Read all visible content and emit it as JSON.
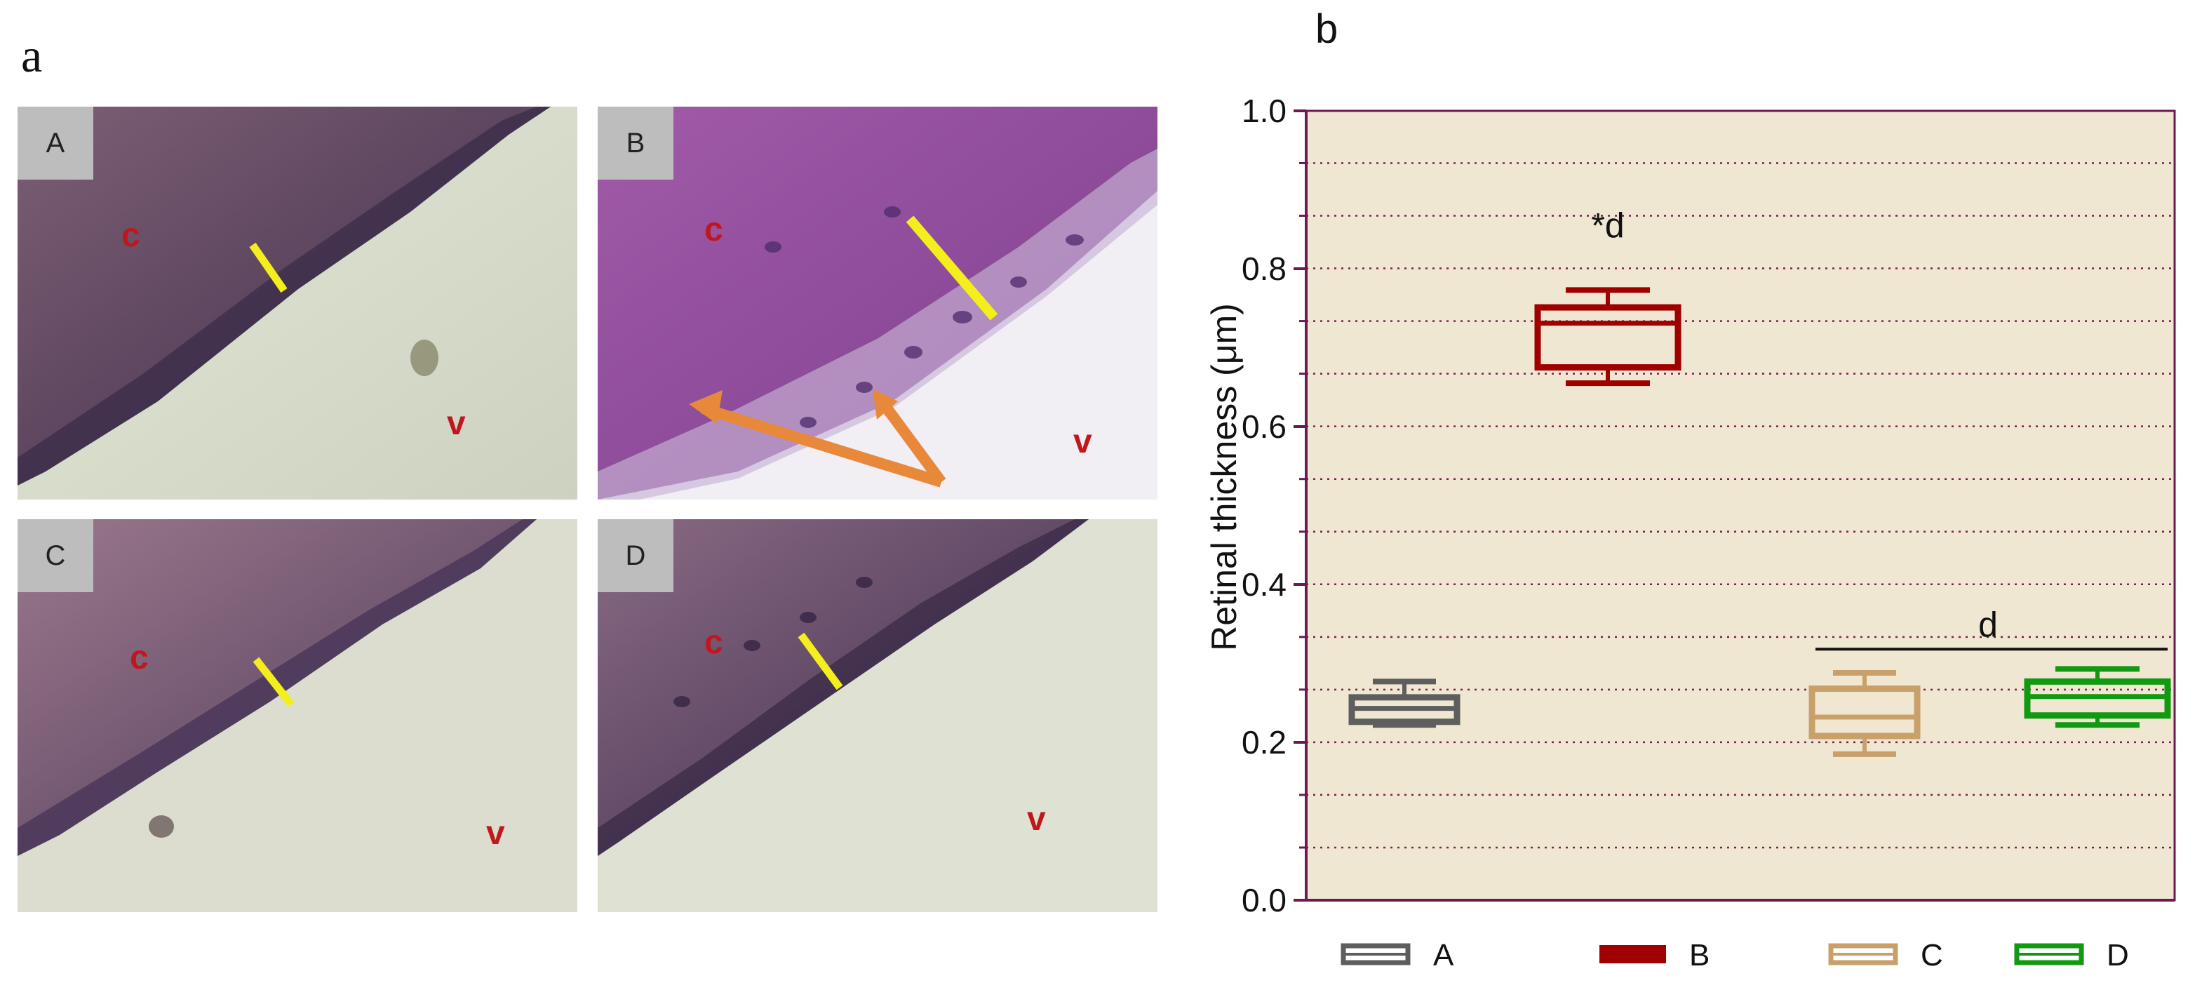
{
  "figure": {
    "panel_a_letter": "a",
    "panel_b_letter": "b"
  },
  "micrographs": [
    {
      "tag": "A",
      "c_label": "c",
      "v_label": "v"
    },
    {
      "tag": "B",
      "c_label": "c",
      "v_label": "v"
    },
    {
      "tag": "C",
      "c_label": "c",
      "v_label": "v"
    },
    {
      "tag": "D",
      "c_label": "c",
      "v_label": "v"
    }
  ],
  "colors": {
    "plot_bg": "#efe7d1",
    "axis": "#6b1a55",
    "grid": "#7a1f4f",
    "A": "#5e5e5e",
    "B": "#a00000",
    "C": "#c9a06a",
    "D": "#119911",
    "marker_line": "#f4ee1c",
    "arrow": "#e8883a"
  },
  "chart_data": {
    "type": "box",
    "ylabel": "Retinal thickness (μm)",
    "ylim": [
      0.0,
      1.0
    ],
    "yticks": [
      "0.0",
      "0.2",
      "0.4",
      "0.6",
      "0.8",
      "1.0"
    ],
    "grid": "dotted horizontal",
    "legend_position": "bottom",
    "categories": [
      "A",
      "B",
      "C",
      "D"
    ],
    "series": [
      {
        "name": "A",
        "min": 0.222,
        "q1": 0.226,
        "median": 0.243,
        "q3": 0.257,
        "max": 0.277
      },
      {
        "name": "B",
        "min": 0.655,
        "q1": 0.675,
        "median": 0.731,
        "q3": 0.751,
        "max": 0.773
      },
      {
        "name": "C",
        "min": 0.185,
        "q1": 0.208,
        "median": 0.232,
        "q3": 0.268,
        "max": 0.288
      },
      {
        "name": "D",
        "min": 0.222,
        "q1": 0.234,
        "median": 0.258,
        "q3": 0.277,
        "max": 0.293
      }
    ],
    "annotations": [
      {
        "text": "*d",
        "target": "B"
      },
      {
        "text": "d",
        "target": "C-D"
      }
    ]
  }
}
